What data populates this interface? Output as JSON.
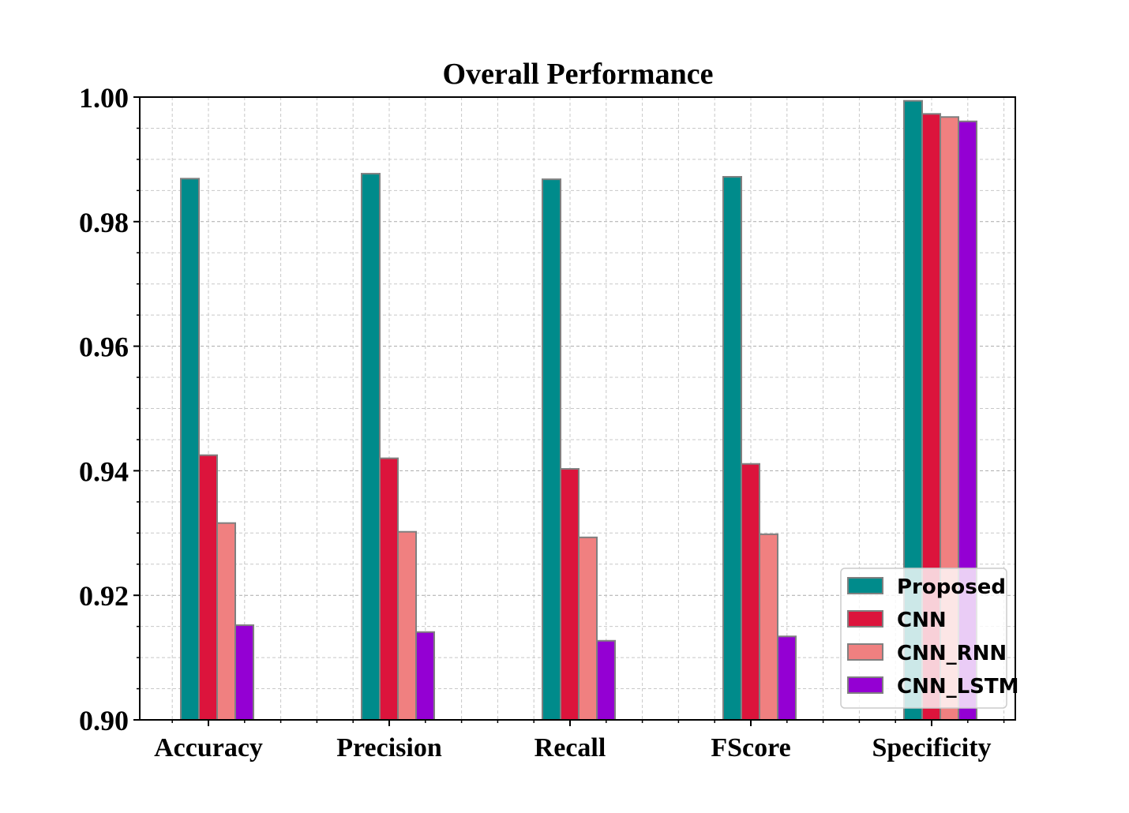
{
  "chart_data": {
    "type": "bar",
    "title": "Overall Performance",
    "xlabel": "",
    "ylabel": "",
    "categories": [
      "Accuracy",
      "Precision",
      "Recall",
      "FScore",
      "Specificity"
    ],
    "series": [
      {
        "name": "Proposed",
        "color": "#008B8B",
        "values": [
          0.9869,
          0.9877,
          0.9868,
          0.9872,
          0.9994
        ]
      },
      {
        "name": "CNN",
        "color": "#DC143C",
        "values": [
          0.9425,
          0.942,
          0.9403,
          0.9411,
          0.9973
        ]
      },
      {
        "name": "CNN_RNN",
        "color": "#F08080",
        "values": [
          0.9316,
          0.9302,
          0.9293,
          0.9298,
          0.9968
        ]
      },
      {
        "name": "CNN_LSTM",
        "color": "#9400D3",
        "values": [
          0.9152,
          0.9141,
          0.9127,
          0.9134,
          0.9961
        ]
      }
    ],
    "ylim": [
      0.9,
      1.0
    ],
    "yticks": [
      "0.90",
      "0.92",
      "0.94",
      "0.96",
      "0.98",
      "1.00"
    ],
    "grid": true,
    "legend_position": "bottom-right"
  }
}
